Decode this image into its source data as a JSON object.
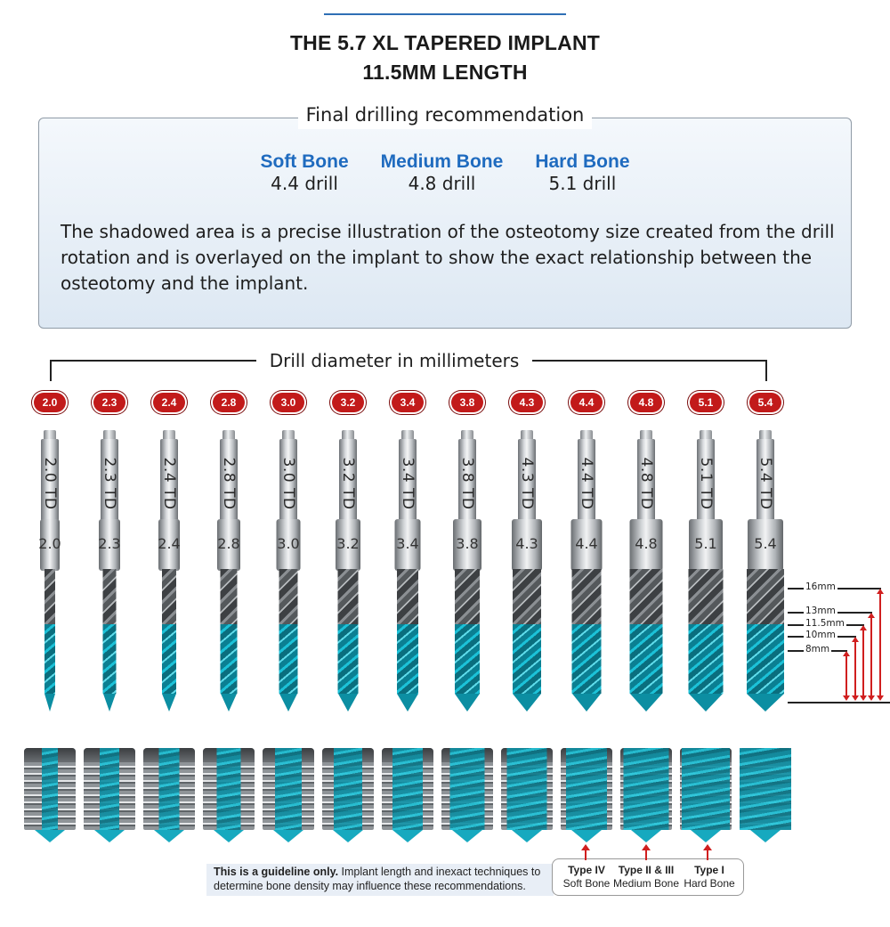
{
  "title_line1": "THE 5.7 XL TAPERED IMPLANT",
  "title_line2": "11.5MM LENGTH",
  "recommendation": {
    "label": "Final drilling recommendation",
    "bones": [
      {
        "name": "Soft Bone",
        "drill": "4.4 drill"
      },
      {
        "name": "Medium Bone",
        "drill": "4.8 drill"
      },
      {
        "name": "Hard Bone",
        "drill": "5.1 drill"
      }
    ],
    "text": "The shadowed area is a precise illustration of the osteotomy size created from the drill rotation and is overlayed on the implant to show the exact relationship between the osteotomy and the implant."
  },
  "diameter_label": "Drill diameter in millimeters",
  "drills": [
    {
      "badge": "2.0",
      "label": "2.0 TD",
      "neck": "2.0",
      "dia": 2.0
    },
    {
      "badge": "2.3",
      "label": "2.3 TD",
      "neck": "2.3",
      "dia": 2.3
    },
    {
      "badge": "2.4",
      "label": "2.4 TD",
      "neck": "2.4",
      "dia": 2.4
    },
    {
      "badge": "2.8",
      "label": "2.8 TD",
      "neck": "2.8",
      "dia": 2.8
    },
    {
      "badge": "3.0",
      "label": "3.0 TD",
      "neck": "3.0",
      "dia": 3.0
    },
    {
      "badge": "3.2",
      "label": "3.2 TD",
      "neck": "3.2",
      "dia": 3.2
    },
    {
      "badge": "3.4",
      "label": "3.4 TD",
      "neck": "3.4",
      "dia": 3.4
    },
    {
      "badge": "3.8",
      "label": "3.8 TD",
      "neck": "3.8",
      "dia": 3.8
    },
    {
      "badge": "4.3",
      "label": "4.3 TD",
      "neck": "4.3",
      "dia": 4.3
    },
    {
      "badge": "4.4",
      "label": "4.4 TD",
      "neck": "4.4",
      "dia": 4.4
    },
    {
      "badge": "4.8",
      "label": "4.8 TD",
      "neck": "4.8",
      "dia": 4.8
    },
    {
      "badge": "5.1",
      "label": "5.1 TD",
      "neck": "5.1",
      "dia": 5.1
    },
    {
      "badge": "5.4",
      "label": "5.4 TD",
      "neck": "5.4",
      "dia": 5.4
    }
  ],
  "depth_marks": [
    "16mm",
    "13mm",
    "11.5mm",
    "10mm",
    "8mm"
  ],
  "guideline": {
    "bold": "This is a guideline only.",
    "text": " Implant length and inexact techniques to determine bone density may influence these recommendations."
  },
  "bone_types": [
    {
      "type": "Type IV",
      "desc": "Soft Bone"
    },
    {
      "type": "Type II & III",
      "desc": "Medium Bone"
    },
    {
      "type": "Type I",
      "desc": "Hard Bone"
    }
  ],
  "colors": {
    "accent_blue": "#1f6bbf",
    "badge_red": "#c21a1a",
    "osteotomy_cyan": "#1cc2d8",
    "arrow_red": "#d01f1f"
  }
}
